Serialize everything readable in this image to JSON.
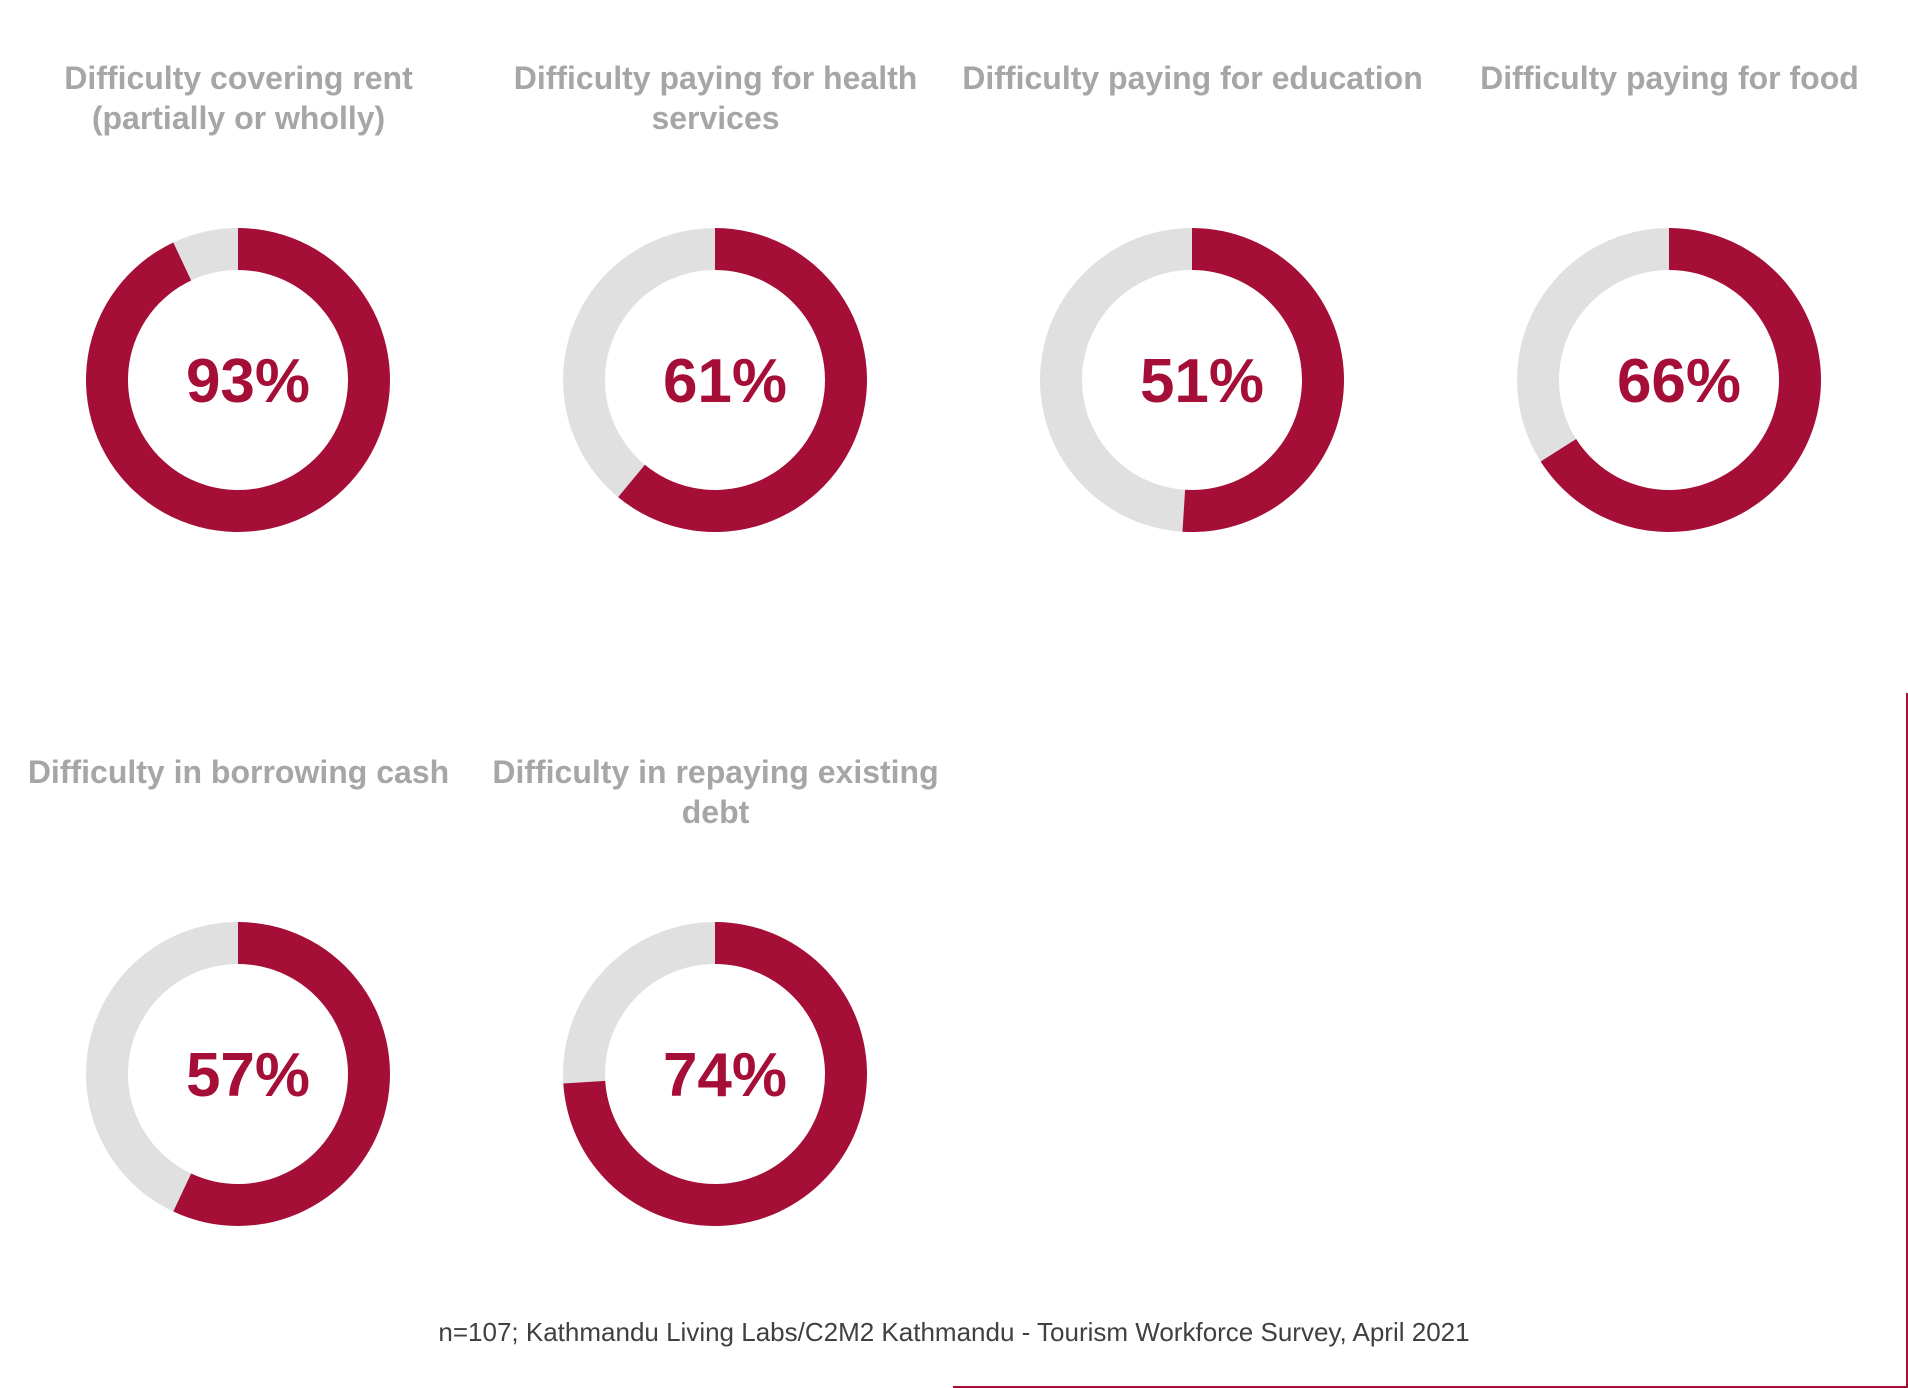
{
  "colors": {
    "filled": "#a50e36",
    "remaining": "#e0e0e0",
    "title": "#a6a6a6",
    "note": "#404040"
  },
  "chart_data": {
    "type": "donut",
    "charts": [
      {
        "title": "Difficulty covering rent (partially or wholly)",
        "value": 93,
        "label": "93%"
      },
      {
        "title": "Difficulty paying for health services",
        "value": 61,
        "label": "61%"
      },
      {
        "title": "Difficulty paying for education",
        "value": 51,
        "label": "51%"
      },
      {
        "title": "Difficulty paying for food",
        "value": 66,
        "label": "66%"
      },
      {
        "title": "Difficulty in borrowing cash",
        "value": 57,
        "label": "57%"
      },
      {
        "title": "Difficulty in repaying existing debt",
        "value": 74,
        "label": "74%"
      }
    ]
  },
  "source_note": "n=107; Kathmandu Living Labs/C2M2 Kathmandu - Tourism Workforce Survey, April 2021"
}
